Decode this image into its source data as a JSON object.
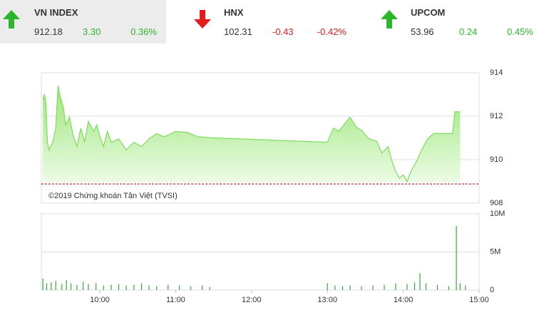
{
  "header": {
    "indices": [
      {
        "name": "VN INDEX",
        "value": "912.18",
        "change": "3.30",
        "percent": "0.36%"
      },
      {
        "name": "HNX",
        "value": "102.31",
        "change": "-0.43",
        "percent": "-0.42%"
      },
      {
        "name": "UPCOM",
        "value": "53.96",
        "change": "0.24",
        "percent": "0.45%"
      }
    ]
  },
  "chart_data": [
    {
      "type": "area",
      "annotation": "©2019 Chứng khoán Tân Việt (TVSI)",
      "color": "#7fdc5a",
      "reference": 908.88,
      "reference_color": "#b30000",
      "x": [
        9.25,
        9.27,
        9.29,
        9.31,
        9.33,
        9.38,
        9.42,
        9.45,
        9.48,
        9.52,
        9.55,
        9.6,
        9.65,
        9.7,
        9.75,
        9.8,
        9.85,
        9.92,
        9.96,
        10.0,
        10.05,
        10.1,
        10.15,
        10.25,
        10.35,
        10.45,
        10.55,
        10.65,
        10.75,
        10.85,
        11.0,
        11.15,
        11.3,
        11.5,
        13.0,
        13.08,
        13.15,
        13.25,
        13.3,
        13.38,
        13.45,
        13.55,
        13.65,
        13.72,
        13.8,
        13.85,
        13.9,
        13.95,
        14.0,
        14.05,
        14.1,
        14.18,
        14.25,
        14.32,
        14.4,
        14.5,
        14.65,
        14.68,
        14.75
      ],
      "values": [
        912.75,
        913.0,
        912.6,
        910.8,
        910.45,
        910.8,
        911.45,
        913.4,
        912.9,
        912.4,
        911.6,
        911.95,
        911.1,
        910.6,
        911.45,
        910.8,
        911.75,
        911.3,
        911.6,
        911.1,
        910.6,
        911.3,
        910.8,
        910.95,
        910.45,
        910.8,
        910.6,
        910.95,
        911.2,
        911.05,
        911.3,
        911.25,
        911.05,
        911.0,
        910.8,
        911.45,
        911.3,
        911.75,
        911.95,
        911.5,
        911.35,
        910.95,
        910.85,
        910.3,
        910.6,
        909.95,
        909.45,
        909.15,
        909.3,
        908.98,
        909.45,
        909.95,
        910.5,
        910.95,
        911.2,
        911.2,
        911.2,
        912.2,
        912.2
      ],
      "xlim": [
        9.23,
        15
      ],
      "ylim": [
        908,
        914
      ],
      "yticks": [
        908,
        910,
        912,
        914
      ],
      "grid": true
    },
    {
      "type": "bar",
      "color": "#3aa63a",
      "x": [
        9.25,
        9.3,
        9.36,
        9.42,
        9.5,
        9.56,
        9.62,
        9.7,
        9.78,
        9.85,
        9.95,
        10.05,
        10.15,
        10.25,
        10.35,
        10.45,
        10.55,
        10.65,
        10.75,
        10.9,
        11.05,
        11.2,
        11.35,
        11.45,
        13.0,
        13.1,
        13.2,
        13.3,
        13.45,
        13.6,
        13.75,
        13.9,
        14.05,
        14.15,
        14.22,
        14.3,
        14.45,
        14.6,
        14.7,
        14.75,
        14.82
      ],
      "values": [
        1500000,
        900000,
        1000000,
        1200000,
        800000,
        1300000,
        900000,
        700000,
        1100000,
        800000,
        900000,
        600000,
        700000,
        800000,
        600000,
        700000,
        900000,
        600000,
        500000,
        700000,
        600000,
        500000,
        600000,
        400000,
        900000,
        600000,
        500000,
        600000,
        500000,
        600000,
        700000,
        900000,
        800000,
        1000000,
        2200000,
        900000,
        700000,
        500000,
        8400000,
        900000,
        600000
      ],
      "xlim": [
        9.23,
        15
      ],
      "ylim": [
        0,
        10000000
      ],
      "yticks": [
        {
          "value": 0,
          "label": "0"
        },
        {
          "value": 5000000,
          "label": "5M"
        },
        {
          "value": 10000000,
          "label": "10M"
        }
      ],
      "xticks": [
        {
          "value": 10,
          "label": "10:00"
        },
        {
          "value": 11,
          "label": "11:00"
        },
        {
          "value": 12,
          "label": "12:00"
        },
        {
          "value": 13,
          "label": "13:00"
        },
        {
          "value": 14,
          "label": "14:00"
        },
        {
          "value": 15,
          "label": "15:00"
        }
      ],
      "grid": true
    }
  ]
}
